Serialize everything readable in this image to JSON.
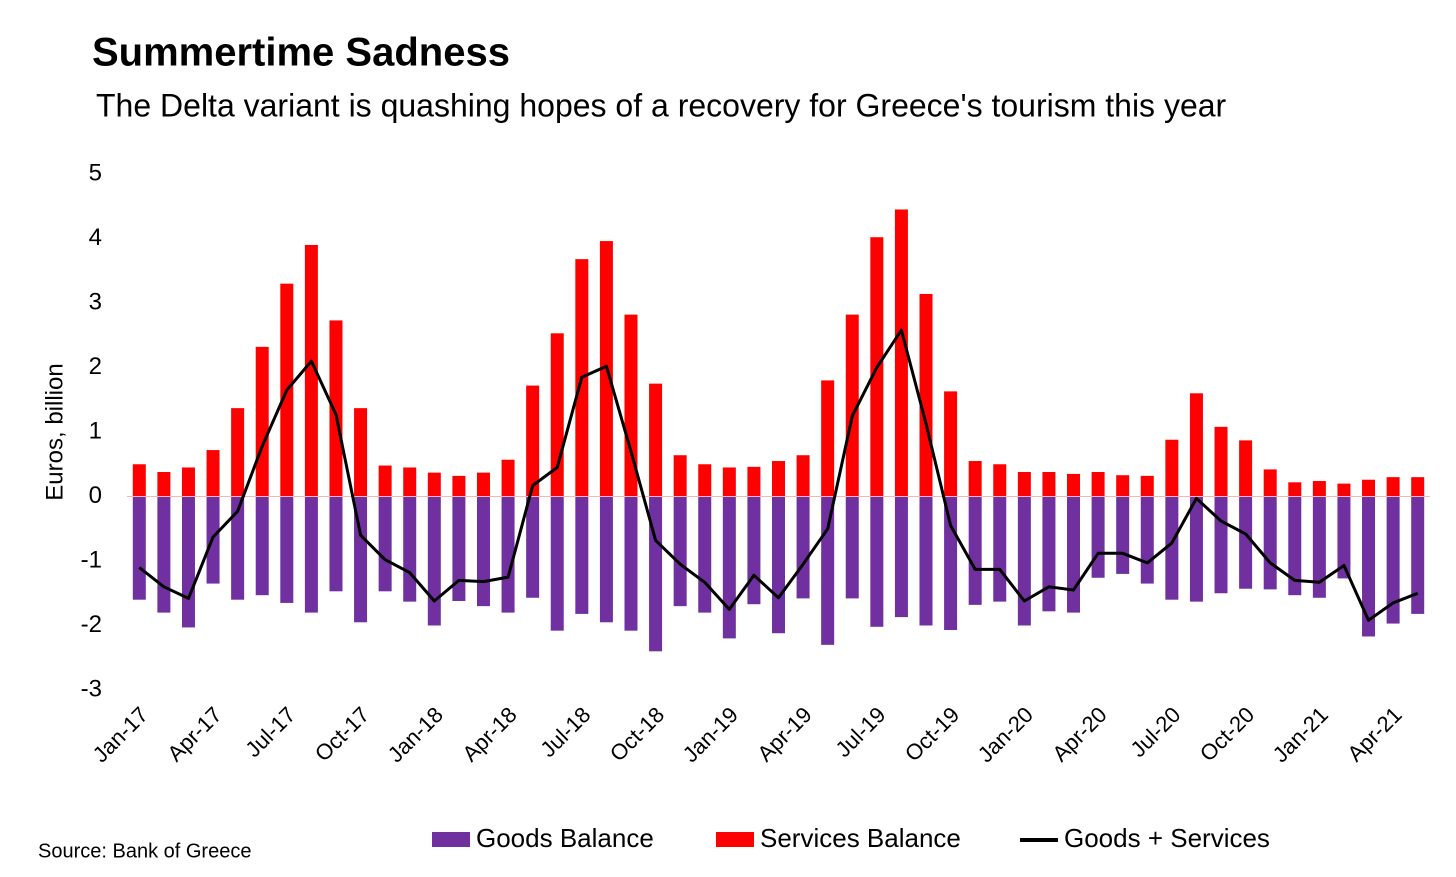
{
  "chart_data": {
    "type": "bar_line",
    "title": "Summertime Sadness",
    "subtitle": "The Delta variant is quashing hopes of a recovery for Greece's tourism this year",
    "y_label": "Euros, billion",
    "source": "Source: Bank of Greece",
    "categories": [
      "Jan-17",
      null,
      null,
      "Apr-17",
      null,
      null,
      "Jul-17",
      null,
      null,
      "Oct-17",
      null,
      null,
      "Jan-18",
      null,
      null,
      "Apr-18",
      null,
      null,
      "Jul-18",
      null,
      null,
      "Oct-18",
      null,
      null,
      "Jan-19",
      null,
      null,
      "Apr-19",
      null,
      null,
      "Jul-19",
      null,
      null,
      "Oct-19",
      null,
      null,
      "Jan-20",
      null,
      null,
      "Apr-20",
      null,
      null,
      "Jul-20",
      null,
      null,
      "Oct-20",
      null,
      null,
      "Jan-21",
      null,
      null,
      "Apr-21",
      null
    ],
    "series": [
      {
        "name": "Goods Balance",
        "color": "#7030a0",
        "kind": "bar",
        "values": [
          -1.6,
          -1.8,
          -2.03,
          -1.35,
          -1.6,
          -1.53,
          -1.65,
          -1.8,
          -1.47,
          -1.95,
          -1.47,
          -1.63,
          -2.0,
          -1.62,
          -1.7,
          -1.8,
          -1.57,
          -2.08,
          -1.82,
          -1.95,
          -2.08,
          -2.4,
          -1.7,
          -1.8,
          -2.2,
          -1.67,
          -2.12,
          -1.58,
          -2.3,
          -1.58,
          -2.02,
          -1.87,
          -2.0,
          -2.07,
          -1.68,
          -1.63,
          -2.0,
          -1.78,
          -1.8,
          -1.26,
          -1.2,
          -1.35,
          -1.6,
          -1.63,
          -1.5,
          -1.43,
          -1.44,
          -1.53,
          -1.57,
          -1.27,
          -2.17,
          -1.97,
          -1.82
        ]
      },
      {
        "name": "Services Balance",
        "color": "#ff0000",
        "kind": "bar",
        "values": [
          0.5,
          0.38,
          0.45,
          0.72,
          1.37,
          2.32,
          3.3,
          3.9,
          2.73,
          1.37,
          0.48,
          0.45,
          0.37,
          0.32,
          0.37,
          0.57,
          1.72,
          2.53,
          3.68,
          3.96,
          2.82,
          1.75,
          0.64,
          0.5,
          0.45,
          0.46,
          0.55,
          0.64,
          1.8,
          2.82,
          4.02,
          4.45,
          3.14,
          1.63,
          0.55,
          0.5,
          0.38,
          0.38,
          0.35,
          0.38,
          0.33,
          0.32,
          0.88,
          1.6,
          1.08,
          0.87,
          0.42,
          0.22,
          0.24,
          0.2,
          0.26,
          0.3,
          0.3
        ]
      },
      {
        "name": "Goods + Services",
        "color": "#000000",
        "kind": "line",
        "values": [
          -1.1,
          -1.4,
          -1.58,
          -0.63,
          -0.23,
          0.78,
          1.65,
          2.1,
          1.27,
          -0.6,
          -0.98,
          -1.18,
          -1.62,
          -1.3,
          -1.32,
          -1.25,
          0.17,
          0.45,
          1.85,
          2.02,
          0.7,
          -0.68,
          -1.05,
          -1.33,
          -1.75,
          -1.22,
          -1.57,
          -1.05,
          -0.5,
          1.25,
          2.0,
          2.58,
          1.13,
          -0.45,
          -1.13,
          -1.13,
          -1.62,
          -1.4,
          -1.45,
          -0.88,
          -0.88,
          -1.03,
          -0.72,
          -0.03,
          -0.38,
          -0.58,
          -1.03,
          -1.3,
          -1.33,
          -1.07,
          -1.92,
          -1.65,
          -1.5
        ]
      }
    ],
    "ylim": [
      -3,
      5
    ],
    "yticks": [
      -3,
      -2,
      -1,
      0,
      1,
      2,
      3,
      4,
      5
    ],
    "grid": false
  }
}
